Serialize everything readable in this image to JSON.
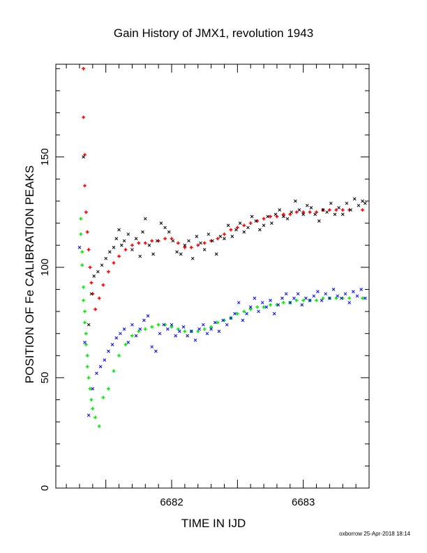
{
  "chart_data": {
    "type": "scatter",
    "title": "Gain History of JMX1, revolution 1943",
    "xlabel": "TIME IN IJD",
    "ylabel": "POSITION OF Fe CALIBRATION PEAKS",
    "xlim": [
      6681.12,
      6683.5
    ],
    "ylim": [
      0,
      192
    ],
    "x_ticks": [
      6682,
      6683
    ],
    "y_ticks": [
      0,
      50,
      100,
      150
    ],
    "grid": false,
    "legend": "none",
    "colors": {
      "upper_raw": "#000000",
      "upper_fit": "#ff0000",
      "lower_raw": "#0000ff",
      "lower_fit": "#00ee00"
    },
    "series": [
      {
        "key": "upper_fit",
        "marker": "plus",
        "x": [
          6681.33,
          6681.33,
          6681.34,
          6681.34,
          6681.35,
          6681.36,
          6681.37,
          6681.38,
          6681.39,
          6681.4,
          6681.42,
          6681.45,
          6681.48,
          6681.52,
          6681.56,
          6681.6,
          6681.65,
          6681.7,
          6681.75,
          6681.8,
          6681.85,
          6681.9,
          6681.95,
          6682.0,
          6682.05,
          6682.1,
          6682.15,
          6682.2,
          6682.25,
          6682.3,
          6682.35,
          6682.4,
          6682.45,
          6682.5,
          6682.55,
          6682.6,
          6682.65,
          6682.7,
          6682.75,
          6682.8,
          6682.85,
          6682.9,
          6682.95,
          6683.0,
          6683.05,
          6683.1,
          6683.15,
          6683.2,
          6683.25,
          6683.3,
          6683.35,
          6683.45
        ],
        "y": [
          190,
          168,
          151,
          137,
          125,
          116,
          108,
          100,
          93,
          88,
          81,
          86,
          92,
          98,
          102,
          105,
          108,
          110,
          111,
          111,
          112,
          112,
          113,
          113,
          111,
          109,
          109,
          110,
          111,
          112,
          113,
          115,
          117,
          118,
          119,
          120,
          121,
          122,
          123,
          123,
          124,
          124,
          125,
          125,
          125,
          125,
          126,
          126,
          126,
          126,
          126,
          126
        ]
      },
      {
        "key": "upper_raw",
        "marker": "x",
        "x": [
          6681.33,
          6681.37,
          6681.39,
          6681.41,
          6681.44,
          6681.47,
          6681.5,
          6681.53,
          6681.56,
          6681.58,
          6681.6,
          6681.62,
          6681.64,
          6681.67,
          6681.7,
          6681.73,
          6681.76,
          6681.78,
          6681.8,
          6681.83,
          6681.86,
          6681.89,
          6681.92,
          6681.95,
          6681.98,
          6682.01,
          6682.04,
          6682.07,
          6682.1,
          6682.13,
          6682.16,
          6682.19,
          6682.22,
          6682.25,
          6682.28,
          6682.31,
          6682.34,
          6682.37,
          6682.4,
          6682.43,
          6682.46,
          6682.49,
          6682.52,
          6682.55,
          6682.58,
          6682.61,
          6682.64,
          6682.67,
          6682.7,
          6682.73,
          6682.76,
          6682.79,
          6682.82,
          6682.85,
          6682.88,
          6682.91,
          6682.94,
          6682.97,
          6683.0,
          6683.03,
          6683.06,
          6683.09,
          6683.12,
          6683.15,
          6683.18,
          6683.21,
          6683.24,
          6683.27,
          6683.3,
          6683.33,
          6683.36,
          6683.39,
          6683.42,
          6683.45,
          6683.47
        ],
        "y": [
          150,
          74,
          88,
          96,
          98,
          101,
          104,
          107,
          109,
          113,
          117,
          110,
          112,
          115,
          108,
          113,
          105,
          116,
          122,
          110,
          106,
          112,
          120,
          118,
          116,
          112,
          107,
          106,
          110,
          112,
          104,
          114,
          111,
          108,
          115,
          112,
          106,
          114,
          113,
          119,
          114,
          117,
          120,
          116,
          118,
          123,
          121,
          117,
          119,
          123,
          120,
          124,
          126,
          123,
          122,
          125,
          130,
          126,
          124,
          128,
          127,
          124,
          121,
          126,
          125,
          129,
          124,
          127,
          124,
          129,
          126,
          131,
          128,
          130,
          129
        ]
      },
      {
        "key": "lower_fit",
        "marker": "plus",
        "x": [
          6681.31,
          6681.31,
          6681.32,
          6681.32,
          6681.33,
          6681.33,
          6681.34,
          6681.34,
          6681.35,
          6681.35,
          6681.36,
          6681.36,
          6681.37,
          6681.38,
          6681.39,
          6681.4,
          6681.42,
          6681.45,
          6681.48,
          6681.52,
          6681.56,
          6681.6,
          6681.65,
          6681.7,
          6681.75,
          6681.8,
          6681.85,
          6681.9,
          6681.95,
          6682.0,
          6682.05,
          6682.1,
          6682.15,
          6682.2,
          6682.25,
          6682.3,
          6682.35,
          6682.4,
          6682.45,
          6682.5,
          6682.55,
          6682.6,
          6682.65,
          6682.7,
          6682.75,
          6682.8,
          6682.85,
          6682.9,
          6682.95,
          6683.0,
          6683.05,
          6683.1,
          6683.15,
          6683.2,
          6683.25,
          6683.3,
          6683.35,
          6683.45
        ],
        "y": [
          122,
          115,
          107,
          101,
          91,
          85,
          80,
          75,
          70,
          65,
          60,
          55,
          50,
          45,
          40,
          36,
          32,
          28,
          41,
          45,
          53,
          60,
          65,
          69,
          71,
          72,
          73,
          74,
          74,
          73,
          72,
          71,
          71,
          71,
          72,
          73,
          75,
          76,
          77,
          79,
          80,
          81,
          82,
          82,
          83,
          83,
          84,
          84,
          85,
          85,
          85,
          85,
          86,
          86,
          86,
          86,
          86,
          86
        ]
      },
      {
        "key": "lower_raw",
        "marker": "x",
        "x": [
          6681.3,
          6681.34,
          6681.37,
          6681.4,
          6681.43,
          6681.46,
          6681.49,
          6681.52,
          6681.55,
          6681.58,
          6681.61,
          6681.64,
          6681.67,
          6681.7,
          6681.73,
          6681.76,
          6681.79,
          6681.82,
          6681.85,
          6681.88,
          6681.91,
          6681.94,
          6681.97,
          6682.0,
          6682.03,
          6682.06,
          6682.09,
          6682.12,
          6682.15,
          6682.18,
          6682.21,
          6682.24,
          6682.27,
          6682.3,
          6682.33,
          6682.36,
          6682.39,
          6682.42,
          6682.45,
          6682.48,
          6682.51,
          6682.54,
          6682.57,
          6682.6,
          6682.63,
          6682.66,
          6682.69,
          6682.72,
          6682.75,
          6682.78,
          6682.81,
          6682.84,
          6682.87,
          6682.9,
          6682.93,
          6682.96,
          6682.99,
          6683.02,
          6683.05,
          6683.08,
          6683.11,
          6683.14,
          6683.17,
          6683.2,
          6683.23,
          6683.26,
          6683.29,
          6683.32,
          6683.35,
          6683.38,
          6683.41,
          6683.44,
          6683.47
        ],
        "y": [
          109,
          66,
          33,
          45,
          52,
          55,
          58,
          62,
          65,
          68,
          70,
          72,
          66,
          74,
          69,
          72,
          76,
          78,
          64,
          62,
          70,
          74,
          72,
          74,
          69,
          71,
          73,
          69,
          71,
          67,
          72,
          74,
          70,
          72,
          75,
          71,
          76,
          74,
          77,
          79,
          84,
          76,
          79,
          82,
          86,
          80,
          84,
          82,
          85,
          79,
          83,
          86,
          88,
          84,
          86,
          88,
          83,
          86,
          85,
          87,
          89,
          85,
          88,
          86,
          90,
          87,
          86,
          88,
          84,
          89,
          87,
          90,
          86
        ]
      }
    ]
  },
  "footer": {
    "stamp": "oxborrow 25-Apr-2018 18:14"
  }
}
